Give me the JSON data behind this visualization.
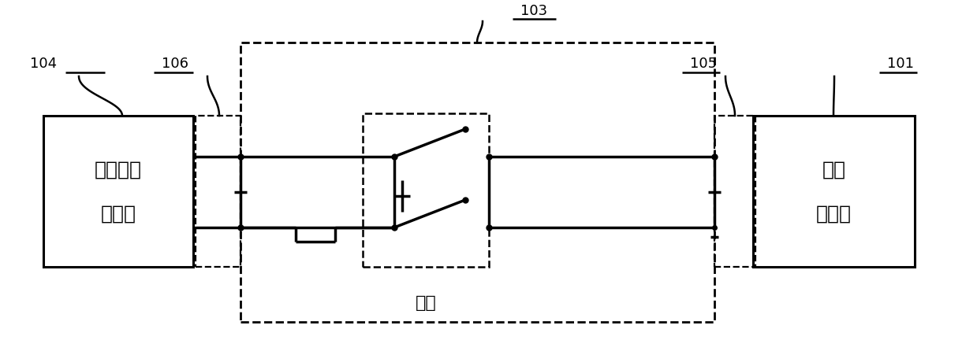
{
  "bg_color": "#ffffff",
  "lc": "#000000",
  "fig_width": 12.39,
  "fig_height": 4.52,
  "box_left_line1": "待测车载",
  "box_left_line2": "充电机",
  "box_right_line1": "低压",
  "box_right_line2": "直流源",
  "switch_label": "开关",
  "label_101": "101",
  "label_103": "103",
  "label_104": "104",
  "label_105": "105",
  "label_106": "106",
  "font_size_box": 18,
  "font_size_label": 13,
  "font_size_switch": 16,
  "lw_main": 2.2,
  "lw_dashed": 1.8,
  "lw_wire": 2.5
}
